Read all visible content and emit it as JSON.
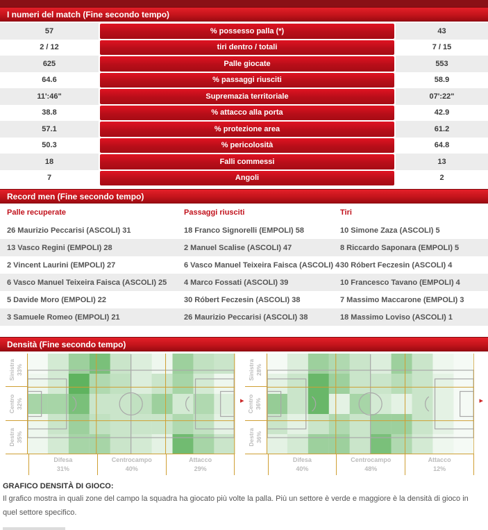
{
  "colors": {
    "top_strip": "#8a1016",
    "header_red_top": "#e42029",
    "header_red_bottom": "#9c0b12",
    "bar_red_top": "#e01322",
    "bar_red_bottom": "#a60c15",
    "row_alt_gray": "#ececec",
    "record_header_red": "#c1121c",
    "sector_line_orange": "#cf9f33",
    "pitch_line_gray": "#a9a9a9",
    "heat_green": "#3fa33f",
    "label_gray": "#bcbcbc"
  },
  "match_numbers": {
    "title": "I numeri del match (Fine secondo tempo)",
    "rows": [
      {
        "home": "57",
        "label": "% possesso palla (*)",
        "away": "43"
      },
      {
        "home": "2 / 12",
        "label": "tiri dentro / totali",
        "away": "7 / 15"
      },
      {
        "home": "625",
        "label": "Palle giocate",
        "away": "553"
      },
      {
        "home": "64.6",
        "label": "% passaggi riusciti",
        "away": "58.9"
      },
      {
        "home": "11':46\"",
        "label": "Supremazia territoriale",
        "away": "07':22\""
      },
      {
        "home": "38.8",
        "label": "% attacco alla porta",
        "away": "42.9"
      },
      {
        "home": "57.1",
        "label": "% protezione area",
        "away": "61.2"
      },
      {
        "home": "50.3",
        "label": "% pericolosità",
        "away": "64.8"
      },
      {
        "home": "18",
        "label": "Falli commessi",
        "away": "13"
      },
      {
        "home": "7",
        "label": "Angoli",
        "away": "2"
      }
    ]
  },
  "record_men": {
    "title": "Record men (Fine secondo tempo)",
    "columns": [
      {
        "header": "Palle recuperate",
        "rows": [
          "26 Maurizio Peccarisi (ASCOLI) 31",
          "13 Vasco Regini (EMPOLI) 28",
          "2 Vincent Laurini (EMPOLI) 27",
          "6 Vasco Manuel Teixeira Faisca (ASCOLI) 25",
          "5 Davide Moro (EMPOLI) 22",
          "3 Samuele Romeo (EMPOLI) 21"
        ]
      },
      {
        "header": "Passaggi riusciti",
        "rows": [
          "18 Franco Signorelli (EMPOLI) 58",
          "2 Manuel Scalise (ASCOLI) 47",
          "6 Vasco Manuel Teixeira Faisca (ASCOLI) 40",
          "4 Marco Fossati (ASCOLI) 39",
          "30 Róbert Feczesin (ASCOLI) 38",
          "26 Maurizio Peccarisi (ASCOLI) 38"
        ]
      },
      {
        "header": "Tiri",
        "rows": [
          "10 Simone Zaza (ASCOLI) 5",
          "8 Riccardo Saponara (EMPOLI) 5",
          "30 Róbert Feczesin (ASCOLI) 4",
          "10 Francesco Tavano (EMPOLI) 4",
          "7 Massimo Maccarone (EMPOLI) 3",
          "18 Massimo Loviso (ASCOLI) 1"
        ]
      }
    ]
  },
  "density": {
    "title": "Densità (Fine secondo tempo)",
    "footer_title": "GRAFICO DENSITÀ DI GIOCO:",
    "footer_text": "Il grafico mostra in quali zone del campo la squadra ha giocato più volte la palla. Più un settore è verde e maggiore è la densità di gioco in quel settore specifico."
  },
  "chart_data": [
    {
      "type": "heatmap",
      "title": "Densità di gioco - campo 1",
      "row_sectors": [
        {
          "label": "Sinistra",
          "pct": "33%"
        },
        {
          "label": "Centro",
          "pct": "32%"
        },
        {
          "label": "Destra",
          "pct": "35%"
        }
      ],
      "col_sectors": [
        {
          "label": "Difesa",
          "pct": "31%"
        },
        {
          "label": "Centrocampo",
          "pct": "40%"
        },
        {
          "label": "Attacco",
          "pct": "29%"
        }
      ],
      "grid": [
        [
          0.05,
          0.25,
          0.55,
          0.75,
          0.3,
          0.2,
          0.1,
          0.55,
          0.35,
          0.3
        ],
        [
          0.1,
          0.25,
          0.9,
          0.45,
          0.35,
          0.2,
          0.3,
          0.5,
          0.25,
          0.1
        ],
        [
          0.5,
          0.5,
          0.75,
          0.3,
          0.3,
          0.35,
          0.55,
          0.25,
          0.45,
          0.2
        ],
        [
          0.1,
          0.3,
          0.55,
          0.35,
          0.3,
          0.3,
          0.3,
          0.45,
          0.35,
          0.15
        ],
        [
          0.1,
          0.25,
          0.5,
          0.5,
          0.3,
          0.25,
          0.15,
          0.8,
          0.5,
          0.3
        ]
      ]
    },
    {
      "type": "heatmap",
      "title": "Densità di gioco - campo 2",
      "row_sectors": [
        {
          "label": "Sinistra",
          "pct": "28%"
        },
        {
          "label": "Centro",
          "pct": "36%"
        },
        {
          "label": "Destra",
          "pct": "36%"
        }
      ],
      "col_sectors": [
        {
          "label": "Difesa",
          "pct": "40%"
        },
        {
          "label": "Centrocampo",
          "pct": "48%"
        },
        {
          "label": "Attacco",
          "pct": "12%"
        }
      ],
      "grid": [
        [
          0.05,
          0.2,
          0.55,
          0.45,
          0.3,
          0.2,
          0.55,
          0.3,
          0.1,
          0.05
        ],
        [
          0.15,
          0.3,
          0.85,
          0.55,
          0.3,
          0.3,
          0.4,
          0.3,
          0.15,
          0.05
        ],
        [
          0.6,
          0.3,
          0.85,
          0.15,
          0.5,
          0.25,
          0.15,
          0.3,
          0.15,
          0.05
        ],
        [
          0.3,
          0.15,
          0.3,
          0.45,
          0.3,
          0.55,
          0.55,
          0.3,
          0.15,
          0.05
        ],
        [
          0.15,
          0.25,
          0.55,
          0.55,
          0.3,
          0.75,
          0.45,
          0.25,
          0.1,
          0.05
        ]
      ]
    }
  ]
}
